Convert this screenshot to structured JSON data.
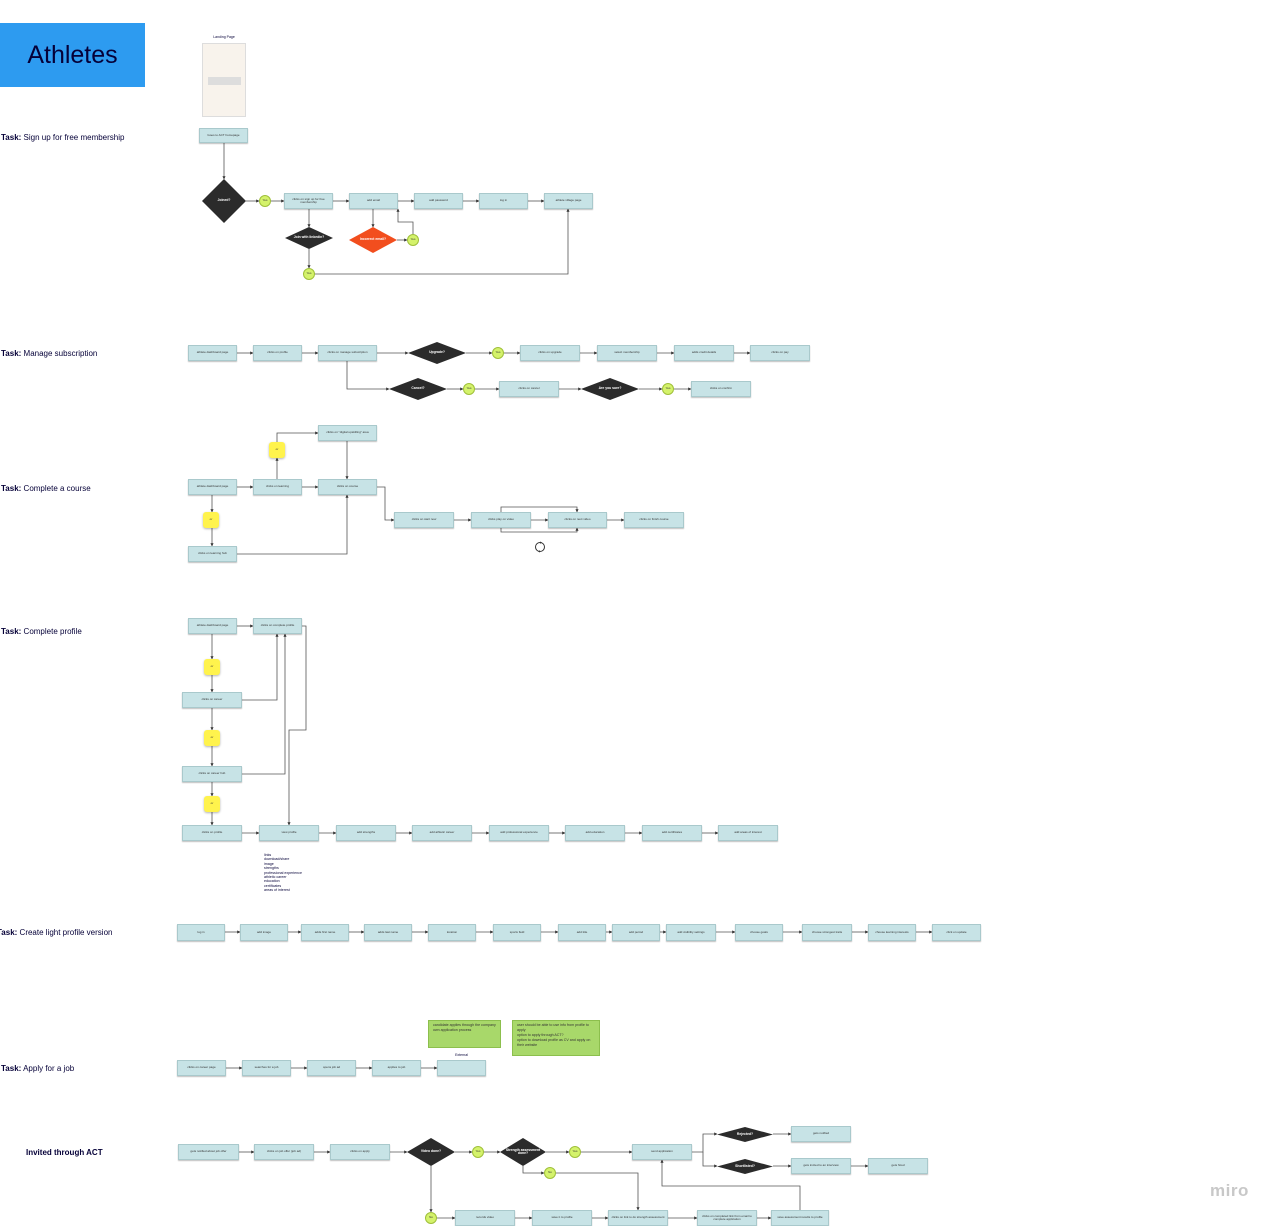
{
  "board_title": "Athletes",
  "tasks": [
    {
      "prefix": "Task:",
      "name": " Sign up for free membership"
    },
    {
      "prefix": "Task:",
      "name": " Manage subscription"
    },
    {
      "prefix": "Task:",
      "name": " Complete a course"
    },
    {
      "prefix": "Task:",
      "name": " Complete profile"
    },
    {
      "prefix": "Task:",
      "name": " Create light profile version"
    },
    {
      "prefix": "Task:",
      "name": " Apply for a job"
    },
    {
      "prefix": "",
      "name": "Invited through ACT"
    }
  ],
  "landing_page_label": "Landing Page",
  "external_label": "External",
  "profile_contents": [
    "links",
    "download/share",
    "image",
    "strengths",
    "professional experience",
    "athletic career",
    "education",
    "certificates",
    "areas of interest"
  ],
  "logo": "miro",
  "colors": {
    "title_bg": "#2d9bf0",
    "process": "#c7e3e6",
    "decision": "#2b2b2b",
    "error_decision": "#f24e1e",
    "yes_circle": "#d4f26b",
    "or_sticky": "#fff34d",
    "note": "#a8d86a"
  },
  "nodes": {
    "s1_home": "Goes to ACT homepage",
    "s1_joined": "Joined?",
    "s1_yes1": "Yes",
    "s1_signup": "clicks on sign up for free membership",
    "s1_email": "add email",
    "s1_pass": "add password",
    "s1_login": "log in",
    "s1_village": "athlete village page",
    "s1_linkedin": "Join with linkedin?",
    "s1_incorrect": "Incorrect email?",
    "s1_yes2": "Yes",
    "s1_yes3": "Yes",
    "s2_dash": "athlete dashboard page",
    "s2_profile": "clicks on profile",
    "s2_manage": "clicks on manage subscription",
    "s2_upgrade_q": "Upgrade?",
    "s2_yes1": "Yes",
    "s2_upgrade": "clicks on upgrade",
    "s2_select": "select membership",
    "s2_credit": "adds credit details",
    "s2_pay": "clicks on pay",
    "s2_cancel_q": "Cancel?",
    "s2_yes2": "Yes",
    "s2_cancel": "clicks on cancel",
    "s2_sure": "Are you sure?",
    "s2_yes3": "Yes",
    "s2_confirm": "clicks on confirm",
    "s3_dash": "athlete dashboard page",
    "s3_learning": "clicks on learning",
    "s3_course": "clicks on course",
    "s3_or1": "or",
    "s3_digital": "clicks on \"digital upskilling\" area",
    "s3_or2": "or",
    "s3_hub": "clicks on learning hub",
    "s3_start": "clicks on start now",
    "s3_play": "clicks play on video",
    "s3_next": "clicks on next video",
    "s3_finish": "clicks on finish course",
    "s4_dash": "athlete dashboard page",
    "s4_complete": "clicks on complete profile",
    "s4_or1": "or",
    "s4_career": "clicks on career",
    "s4_or2": "or",
    "s4_careerhub": "clicks on career hub",
    "s4_or3": "or",
    "s4_profile": "clicks on profile",
    "s4_view": "view profile",
    "s4_strengths": "add strengths",
    "s4_athletic": "add athletic career",
    "s4_prof": "add professional experience",
    "s4_edu": "add education",
    "s4_cert": "add certificates",
    "s4_areas": "add areas of interest",
    "s5_login": "log in",
    "s5_image": "add image",
    "s5_first": "adds first name",
    "s5_last": "adds last name",
    "s5_loc": "location",
    "s5_sports": "sports field",
    "s5_title": "add title",
    "s5_period": "add period",
    "s5_vis": "add visibility settings",
    "s5_goals": "choose goals",
    "s5_traits": "choose strongest traits",
    "s5_interests": "choose learning interests",
    "s5_update": "click on update",
    "s6_career": "clicks on career page",
    "s6_search": "searches for a job",
    "s6_opens": "opens job ad",
    "s6_applies": "applies to job",
    "s6_external": "",
    "s6_note1": "candidate applies through the company own application process",
    "s6_note2": "user should be able to use info from profile to apply\noption to apply through ACT?\noption to download profile as CV and apply on their website",
    "s7_notified": "gets notified about job offer",
    "s7_offer": "clicks on job offer (job ad)",
    "s7_apply": "clicks on apply",
    "s7_video_q": "Video done?",
    "s7_yes1": "Yes",
    "s7_strength_q": "Strength assessment done?",
    "s7_yes2": "Yes",
    "s7_send": "send application",
    "s7_rejected": "Rejected?",
    "s7_gnotified": "gets notified",
    "s7_short": "Shortlisted?",
    "s7_invited": "gets invited to an interview",
    "s7_hired": "gets hired",
    "s7_no1": "No",
    "s7_no2": "No",
    "s7_records": "records video",
    "s7_save": "save it to profile",
    "s7_link": "clicks on link to do strength assessment",
    "s7_completed": "clicks on completed link from email to complete application",
    "s7_saveres": "save assessment results to profile"
  }
}
